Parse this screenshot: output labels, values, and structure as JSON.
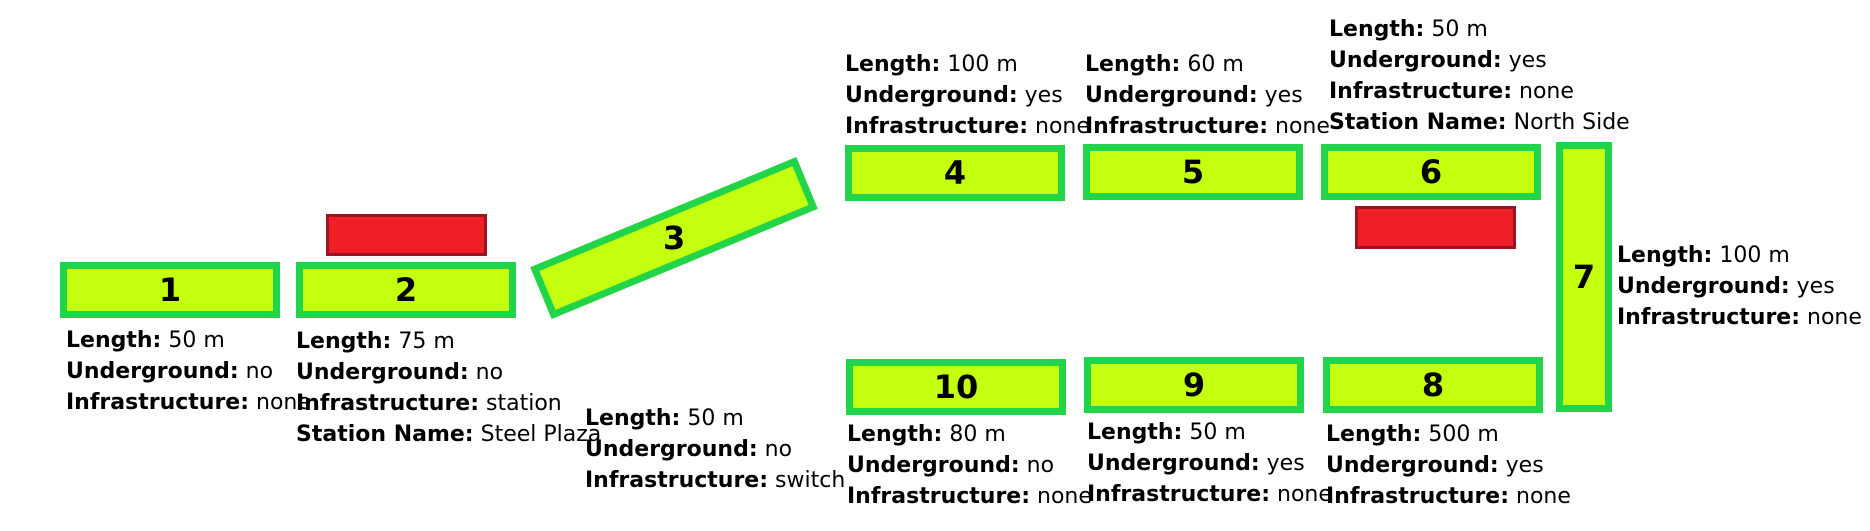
{
  "labels": {
    "length": "Length:",
    "underground": "Underground:",
    "infrastructure": "Infrastructure:",
    "station_name": "Station Name:"
  },
  "segments": [
    {
      "id": "1",
      "length": "50 m",
      "underground": "no",
      "infrastructure": "none"
    },
    {
      "id": "2",
      "length": "75 m",
      "underground": "no",
      "infrastructure": "station",
      "station_name": "Steel Plaza"
    },
    {
      "id": "3",
      "length": "50 m",
      "underground": "no",
      "infrastructure": "switch"
    },
    {
      "id": "4",
      "length": "100 m",
      "underground": "yes",
      "infrastructure": "none"
    },
    {
      "id": "5",
      "length": "60 m",
      "underground": "yes",
      "infrastructure": "none"
    },
    {
      "id": "6",
      "length": "50 m",
      "underground": "yes",
      "infrastructure": "none",
      "station_name": "North Side"
    },
    {
      "id": "7",
      "length": "100 m",
      "underground": "yes",
      "infrastructure": "none"
    },
    {
      "id": "8",
      "length": "500 m",
      "underground": "yes",
      "infrastructure": "none"
    },
    {
      "id": "9",
      "length": "50 m",
      "underground": "yes",
      "infrastructure": "none"
    },
    {
      "id": "10",
      "length": "80 m",
      "underground": "no",
      "infrastructure": "none"
    }
  ],
  "colors": {
    "segment_fill": "#c3ff0e",
    "segment_border": "#22d449",
    "platform_fill": "#ee2026",
    "platform_border": "#9b1424"
  }
}
